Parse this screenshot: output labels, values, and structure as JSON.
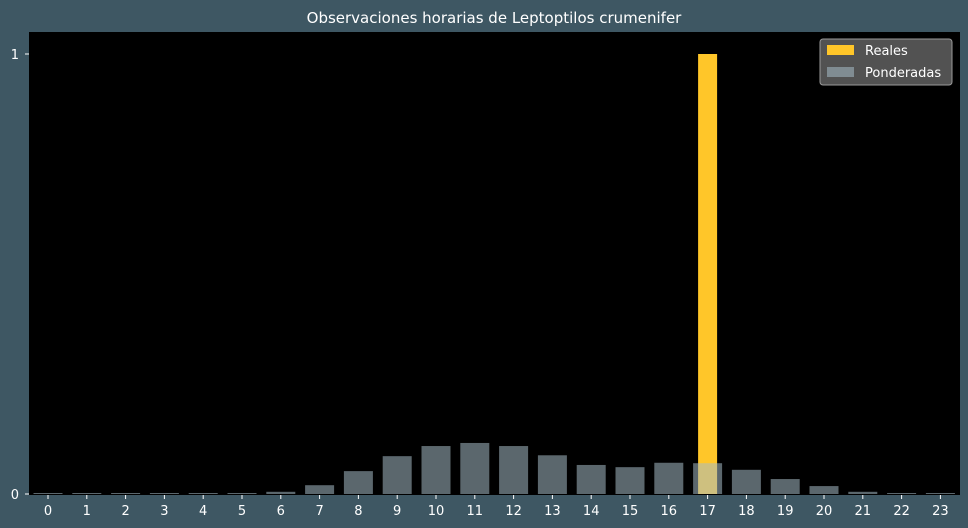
{
  "chart_data": {
    "type": "bar",
    "title": "Observaciones horarias de Leptoptilos crumenifer",
    "xlabel": "",
    "ylabel": "",
    "categories": [
      "0",
      "1",
      "2",
      "3",
      "4",
      "5",
      "6",
      "7",
      "8",
      "9",
      "10",
      "11",
      "12",
      "13",
      "14",
      "15",
      "16",
      "17",
      "18",
      "19",
      "20",
      "21",
      "22",
      "23"
    ],
    "yticks": [
      "0",
      "1"
    ],
    "ylim": [
      0,
      1.05
    ],
    "grid": false,
    "legend": "top-right",
    "series": [
      {
        "name": "Reales",
        "color": "#ffc629",
        "values": [
          0,
          0,
          0,
          0,
          0,
          0,
          0,
          0,
          0,
          0,
          0,
          0,
          0,
          0,
          0,
          0,
          0,
          1,
          0,
          0,
          0,
          0,
          0,
          0
        ]
      },
      {
        "name": "Ponderadas",
        "color": "#a6bcc6",
        "values": [
          0.002,
          0.002,
          0.002,
          0.002,
          0.002,
          0.002,
          0.005,
          0.02,
          0.052,
          0.086,
          0.109,
          0.116,
          0.109,
          0.088,
          0.066,
          0.061,
          0.071,
          0.07,
          0.055,
          0.034,
          0.018,
          0.005,
          0.002,
          0.002
        ]
      }
    ]
  }
}
